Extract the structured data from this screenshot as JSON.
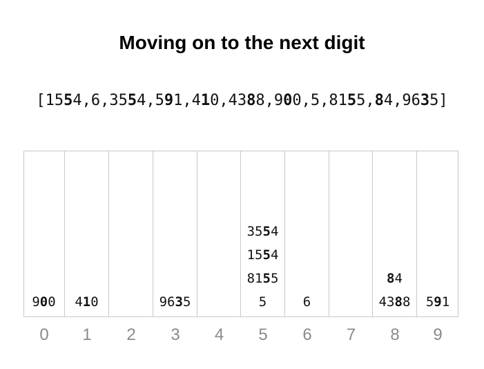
{
  "title": "Moving on to the next digit",
  "array": {
    "open_bracket": "[",
    "close_bracket": "]",
    "separator": ",",
    "items": [
      {
        "pre": "15",
        "digit": "5",
        "post": "4"
      },
      {
        "pre": "",
        "digit": "",
        "post": "6"
      },
      {
        "pre": "35",
        "digit": "5",
        "post": "4"
      },
      {
        "pre": "5",
        "digit": "9",
        "post": "1"
      },
      {
        "pre": "4",
        "digit": "1",
        "post": "0"
      },
      {
        "pre": "43",
        "digit": "8",
        "post": "8"
      },
      {
        "pre": "9",
        "digit": "0",
        "post": "0"
      },
      {
        "pre": "",
        "digit": "",
        "post": "5"
      },
      {
        "pre": "81",
        "digit": "5",
        "post": "5"
      },
      {
        "pre": "",
        "digit": "8",
        "post": "4"
      },
      {
        "pre": "96",
        "digit": "3",
        "post": "5"
      }
    ]
  },
  "buckets": [
    {
      "label": "0",
      "items": [
        {
          "pre": "9",
          "digit": "0",
          "post": "0"
        }
      ]
    },
    {
      "label": "1",
      "items": [
        {
          "pre": "4",
          "digit": "1",
          "post": "0"
        }
      ]
    },
    {
      "label": "2",
      "items": []
    },
    {
      "label": "3",
      "items": [
        {
          "pre": "96",
          "digit": "3",
          "post": "5"
        }
      ]
    },
    {
      "label": "4",
      "items": []
    },
    {
      "label": "5",
      "items": [
        {
          "pre": "",
          "digit": "",
          "post": "5"
        },
        {
          "pre": "81",
          "digit": "5",
          "post": "5"
        },
        {
          "pre": "15",
          "digit": "5",
          "post": "4"
        },
        {
          "pre": "35",
          "digit": "5",
          "post": "4"
        }
      ]
    },
    {
      "label": "6",
      "items": [
        {
          "pre": "",
          "digit": "",
          "post": "6"
        }
      ]
    },
    {
      "label": "7",
      "items": []
    },
    {
      "label": "8",
      "items": [
        {
          "pre": "43",
          "digit": "8",
          "post": "8"
        },
        {
          "pre": "",
          "digit": "8",
          "post": "4"
        }
      ]
    },
    {
      "label": "9",
      "items": [
        {
          "pre": "5",
          "digit": "9",
          "post": "1"
        }
      ]
    }
  ]
}
